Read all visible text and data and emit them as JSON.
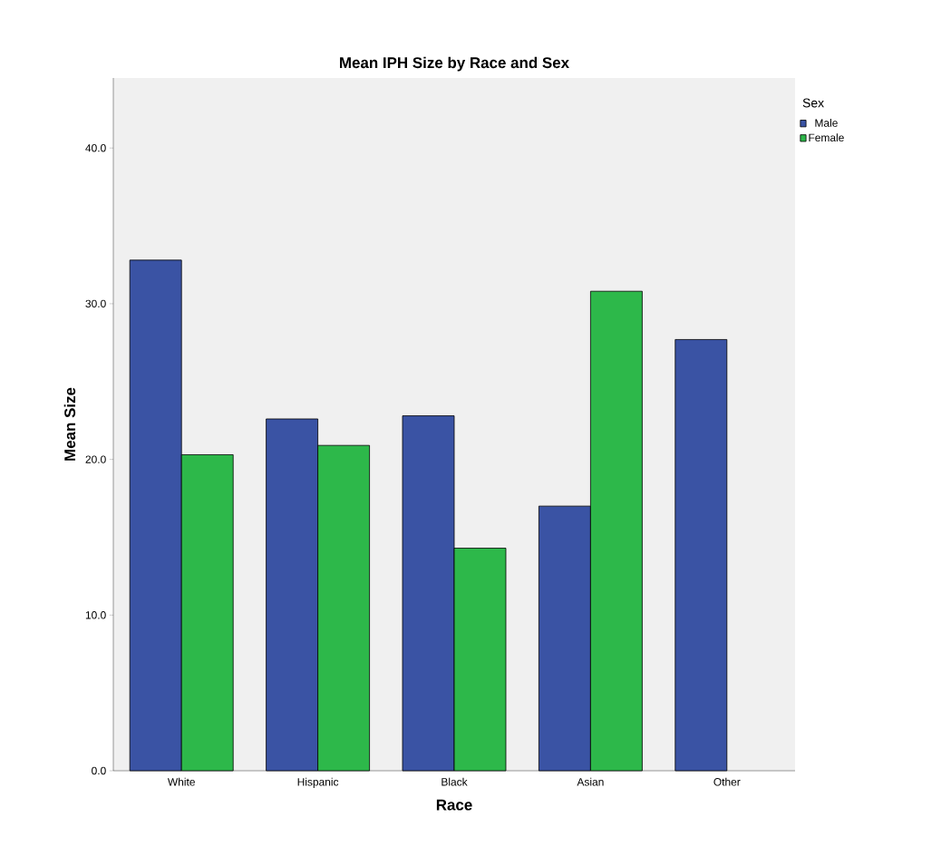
{
  "chart_data": {
    "type": "bar",
    "title": "Mean IPH Size by Race and Sex",
    "xlabel": "Race",
    "ylabel": "Mean Size",
    "legend_title": "Sex",
    "legend": "top right",
    "categories": [
      "White",
      "Hispanic",
      "Black",
      "Asian",
      "Other"
    ],
    "series": [
      {
        "name": "Male",
        "color": "#3a53a4",
        "values": [
          32.8,
          22.6,
          22.8,
          17.0,
          27.7
        ]
      },
      {
        "name": "Female",
        "color": "#2db84a",
        "values": [
          20.3,
          20.9,
          14.3,
          30.8,
          null
        ]
      }
    ],
    "ylim": [
      0,
      44.5
    ],
    "yticks": [
      {
        "value": 0,
        "label": "0.0"
      },
      {
        "value": 10,
        "label": "10.0"
      },
      {
        "value": 20,
        "label": "20.0"
      },
      {
        "value": 30,
        "label": "30.0"
      },
      {
        "value": 40,
        "label": "40.0"
      }
    ]
  }
}
